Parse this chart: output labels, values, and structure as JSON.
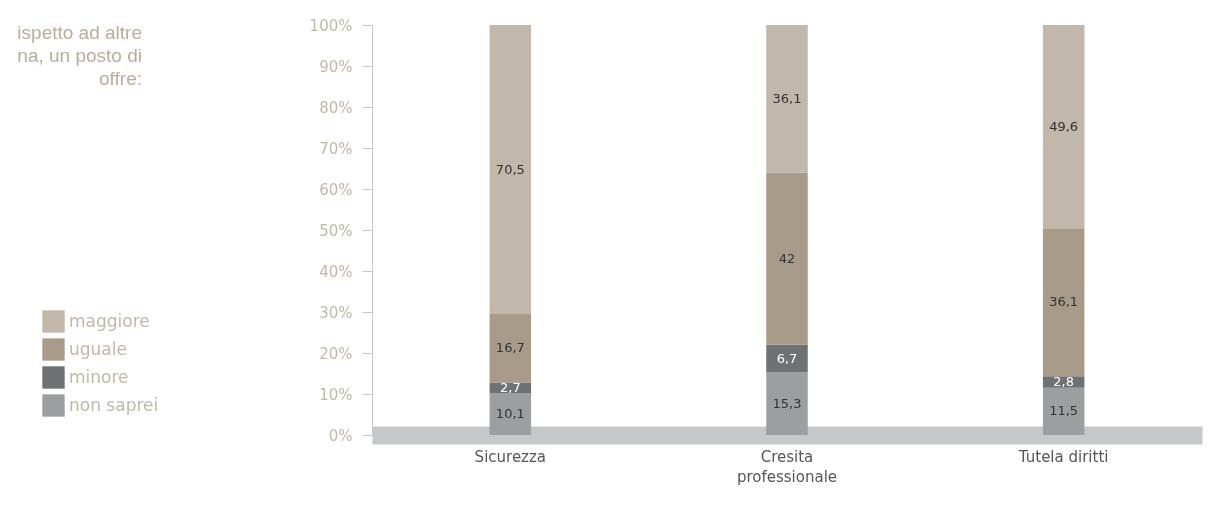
{
  "chart_data": {
    "type": "bar",
    "stacked": true,
    "title": "ispetto ad altre\nna, un posto di\noffre:",
    "categories": [
      "Sicurezza",
      "Cresita professionale",
      "Tutela diritti"
    ],
    "series": [
      {
        "name": "non saprei",
        "color": "#9d9ea0",
        "values": [
          10.1,
          15.3,
          11.5
        ],
        "value_labels": [
          "10,1",
          "15,3",
          "11,5"
        ]
      },
      {
        "name": "minore",
        "color": "#707172",
        "values": [
          2.7,
          6.7,
          2.8
        ],
        "value_labels": [
          "2,7",
          "6,7",
          "2,8"
        ]
      },
      {
        "name": "uguale",
        "color": "#a89b89",
        "values": [
          16.7,
          42,
          36.1
        ],
        "value_labels": [
          "16,7",
          "42",
          "36,1"
        ]
      },
      {
        "name": "maggiore",
        "color": "#c1b7aa",
        "values": [
          70.5,
          36.1,
          49.6
        ],
        "value_labels": [
          "70,5",
          "36,1",
          "49,6"
        ]
      }
    ],
    "ylim": [
      0,
      100
    ],
    "yticks": [
      {
        "value": 0,
        "label": "0%"
      },
      {
        "value": 10,
        "label": "10%"
      },
      {
        "value": 20,
        "label": "20%"
      },
      {
        "value": 30,
        "label": "30%"
      },
      {
        "value": 40,
        "label": "40%"
      },
      {
        "value": 50,
        "label": "50%"
      },
      {
        "value": 60,
        "label": "60%"
      },
      {
        "value": 70,
        "label": "70%"
      },
      {
        "value": 80,
        "label": "80%"
      },
      {
        "value": 90,
        "label": "90%"
      },
      {
        "value": 100,
        "label": "100%"
      }
    ],
    "legend": "left",
    "grid": false
  }
}
